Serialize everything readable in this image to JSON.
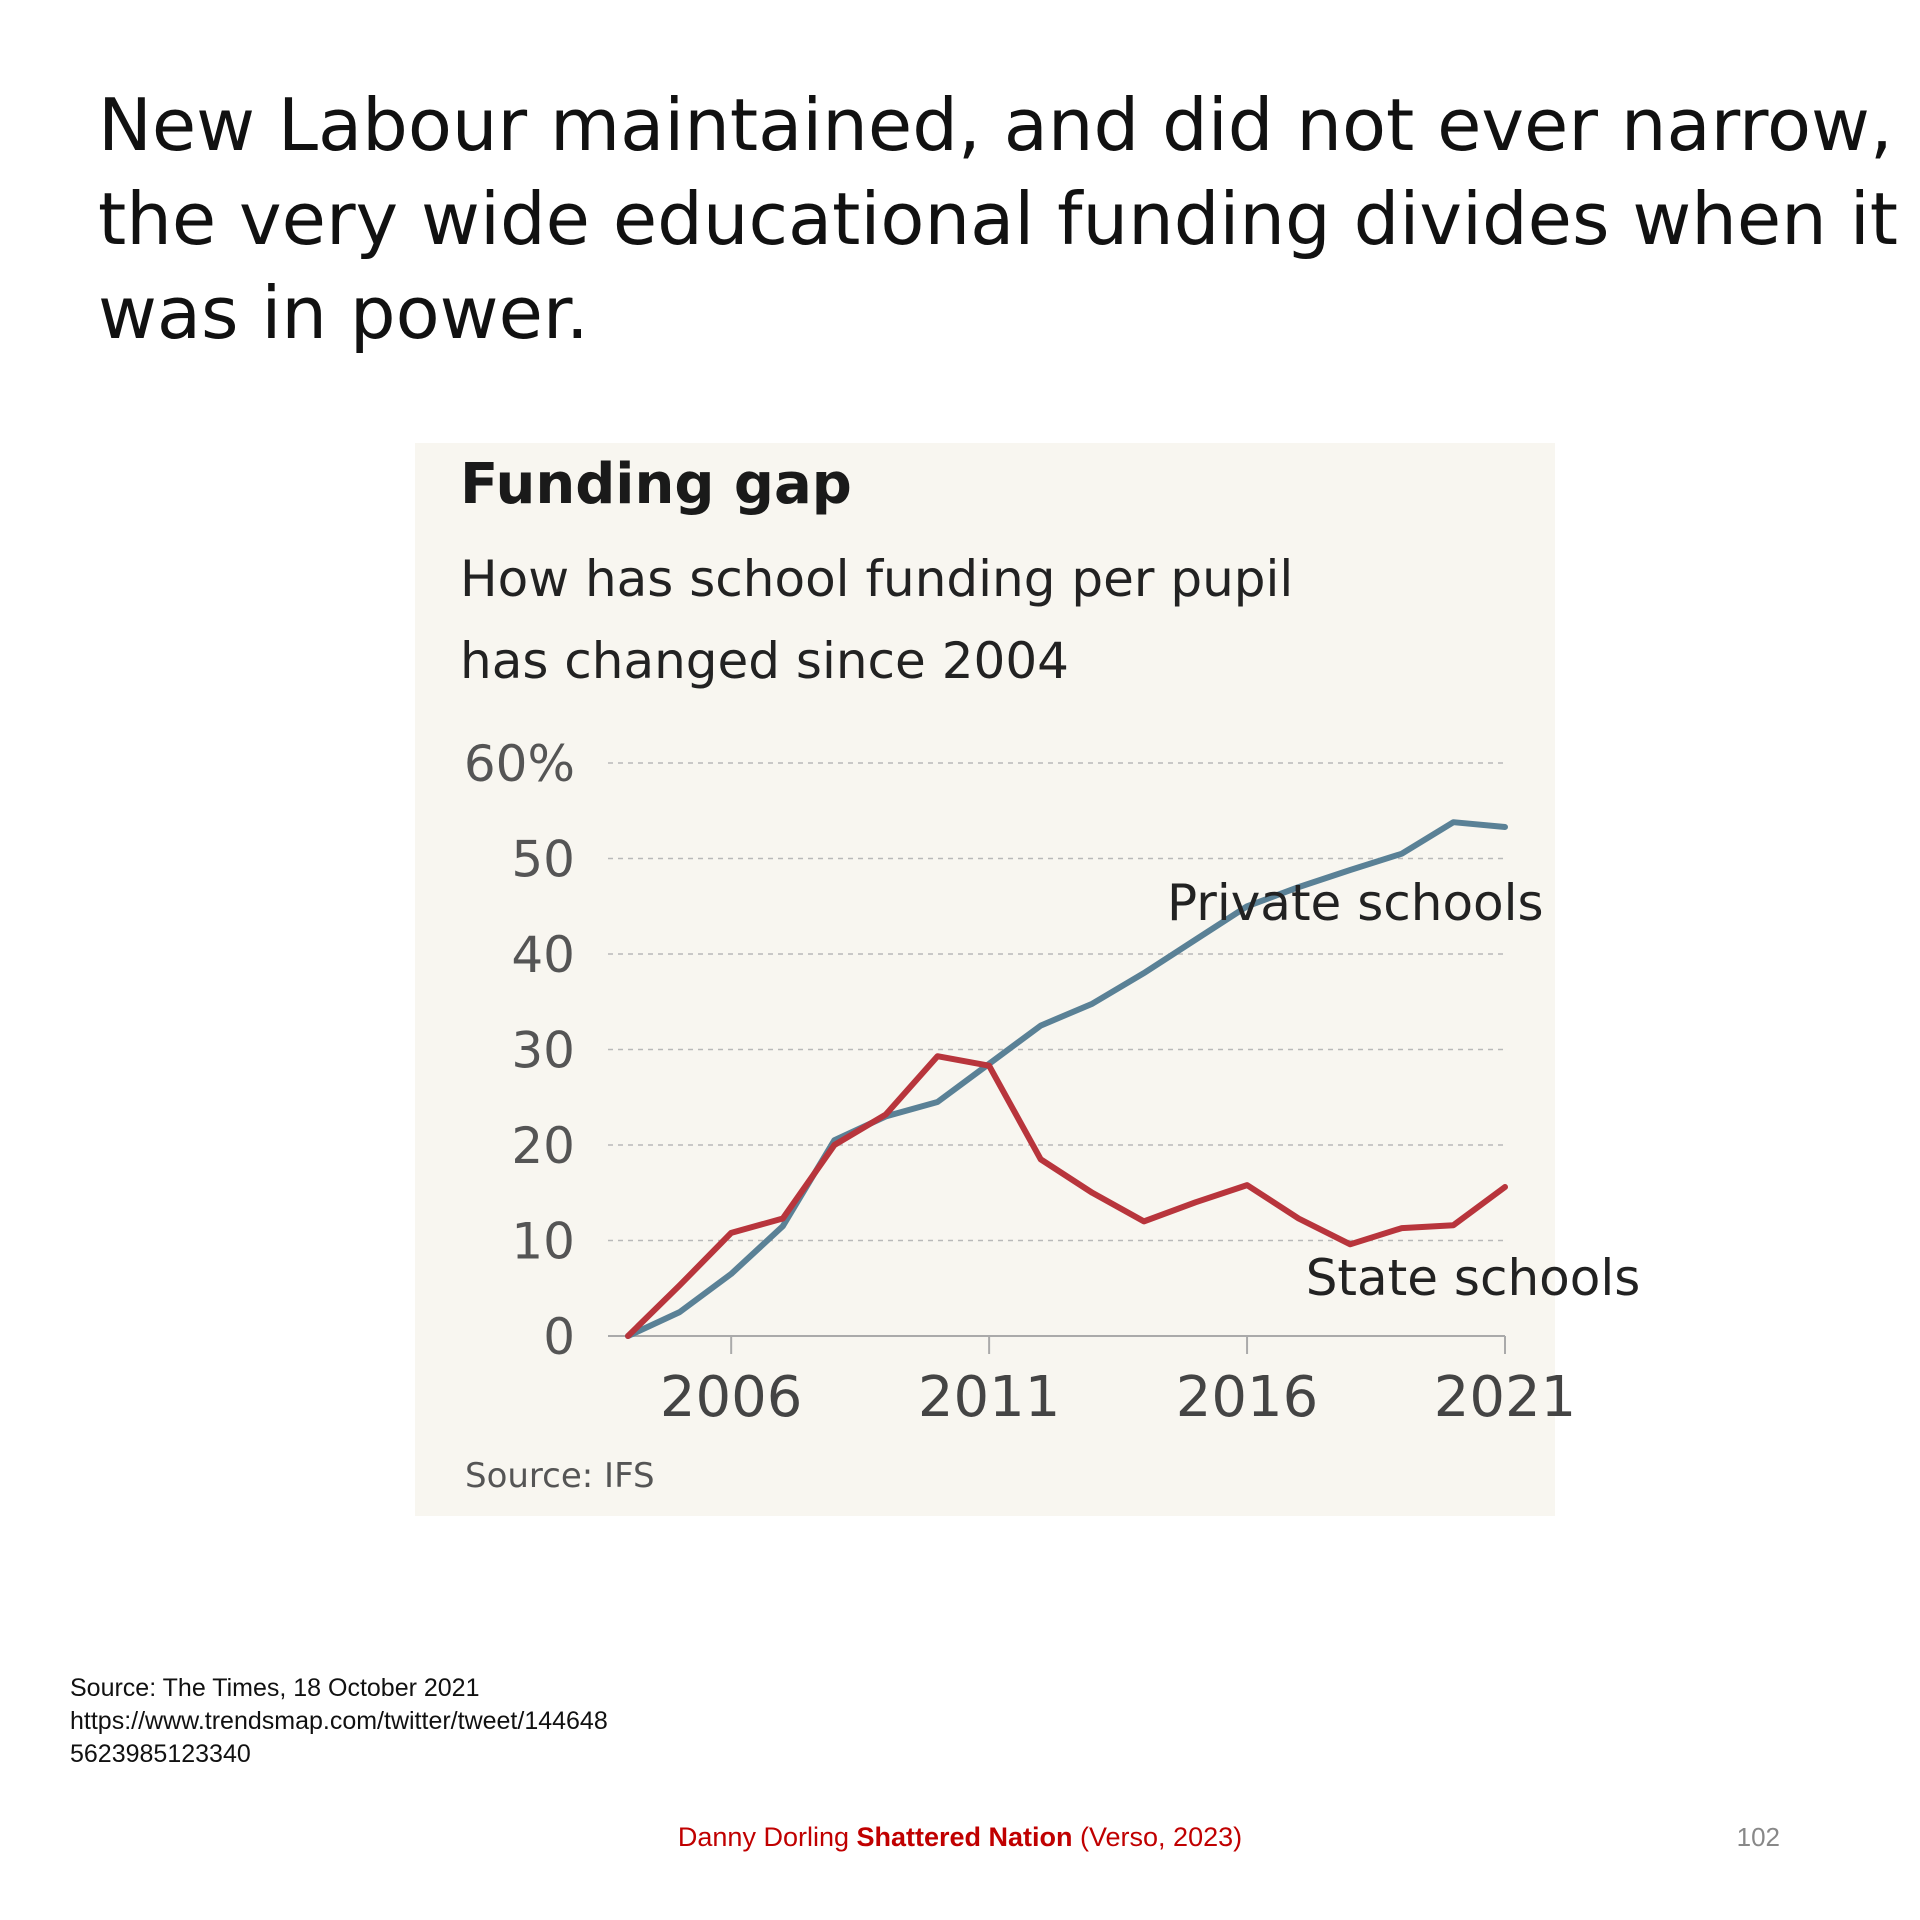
{
  "slide": {
    "title": "New Labour maintained, and did not ever narrow, the very wide educational funding divides when it was in power.",
    "source_lines": [
      "Source: The Times, 18 October 2021",
      "https://www.trendsmap.com/twitter/tweet/1446485623985123340"
    ],
    "credit": {
      "author": "Danny Dorling ",
      "book": "Shattered Nation",
      "publisher": " (Verso, 2023)"
    },
    "page_number": "102"
  },
  "colors": {
    "private": "#5a8196",
    "state": "#b8353c",
    "panel": "#f8f6f0",
    "text": "#222222",
    "axis": "#555555"
  },
  "chart_data": {
    "type": "line",
    "title": "Funding gap",
    "subtitle": [
      "How has school funding per pupil",
      "has changed since 2004"
    ],
    "source": "Source: IFS",
    "xlabel": "",
    "ylabel": "",
    "xlim": [
      2004,
      2021
    ],
    "ylim": [
      0,
      60
    ],
    "yticks": [
      0,
      10,
      20,
      30,
      40,
      50,
      60
    ],
    "ytick_labels": [
      "0",
      "10",
      "20",
      "30",
      "40",
      "50",
      "60%"
    ],
    "xticks": [
      2006,
      2011,
      2016,
      2021
    ],
    "xtick_labels": [
      "2006",
      "2011",
      "2016",
      "2021"
    ],
    "grid": true,
    "series": [
      {
        "name": "Private schools",
        "color_key": "private",
        "x": [
          2004,
          2005,
          2006,
          2007,
          2008,
          2009,
          2010,
          2011,
          2012,
          2013,
          2014,
          2015,
          2016,
          2017,
          2018,
          2019,
          2020,
          2021
        ],
        "values": [
          0,
          2.5,
          6.5,
          11.5,
          20.5,
          23.0,
          24.5,
          28.5,
          32.5,
          34.8,
          38.0,
          41.5,
          45.0,
          47.0,
          48.8,
          50.5,
          53.8,
          53.3
        ]
      },
      {
        "name": "State schools",
        "color_key": "state",
        "x": [
          2004,
          2005,
          2006,
          2007,
          2008,
          2009,
          2010,
          2011,
          2012,
          2013,
          2014,
          2015,
          2016,
          2017,
          2018,
          2019,
          2020,
          2021
        ],
        "values": [
          0,
          5.3,
          10.8,
          12.3,
          20.0,
          23.2,
          29.3,
          28.3,
          18.5,
          15.0,
          12.0,
          14.0,
          15.8,
          12.3,
          9.6,
          11.3,
          11.6,
          15.6
        ]
      }
    ]
  }
}
